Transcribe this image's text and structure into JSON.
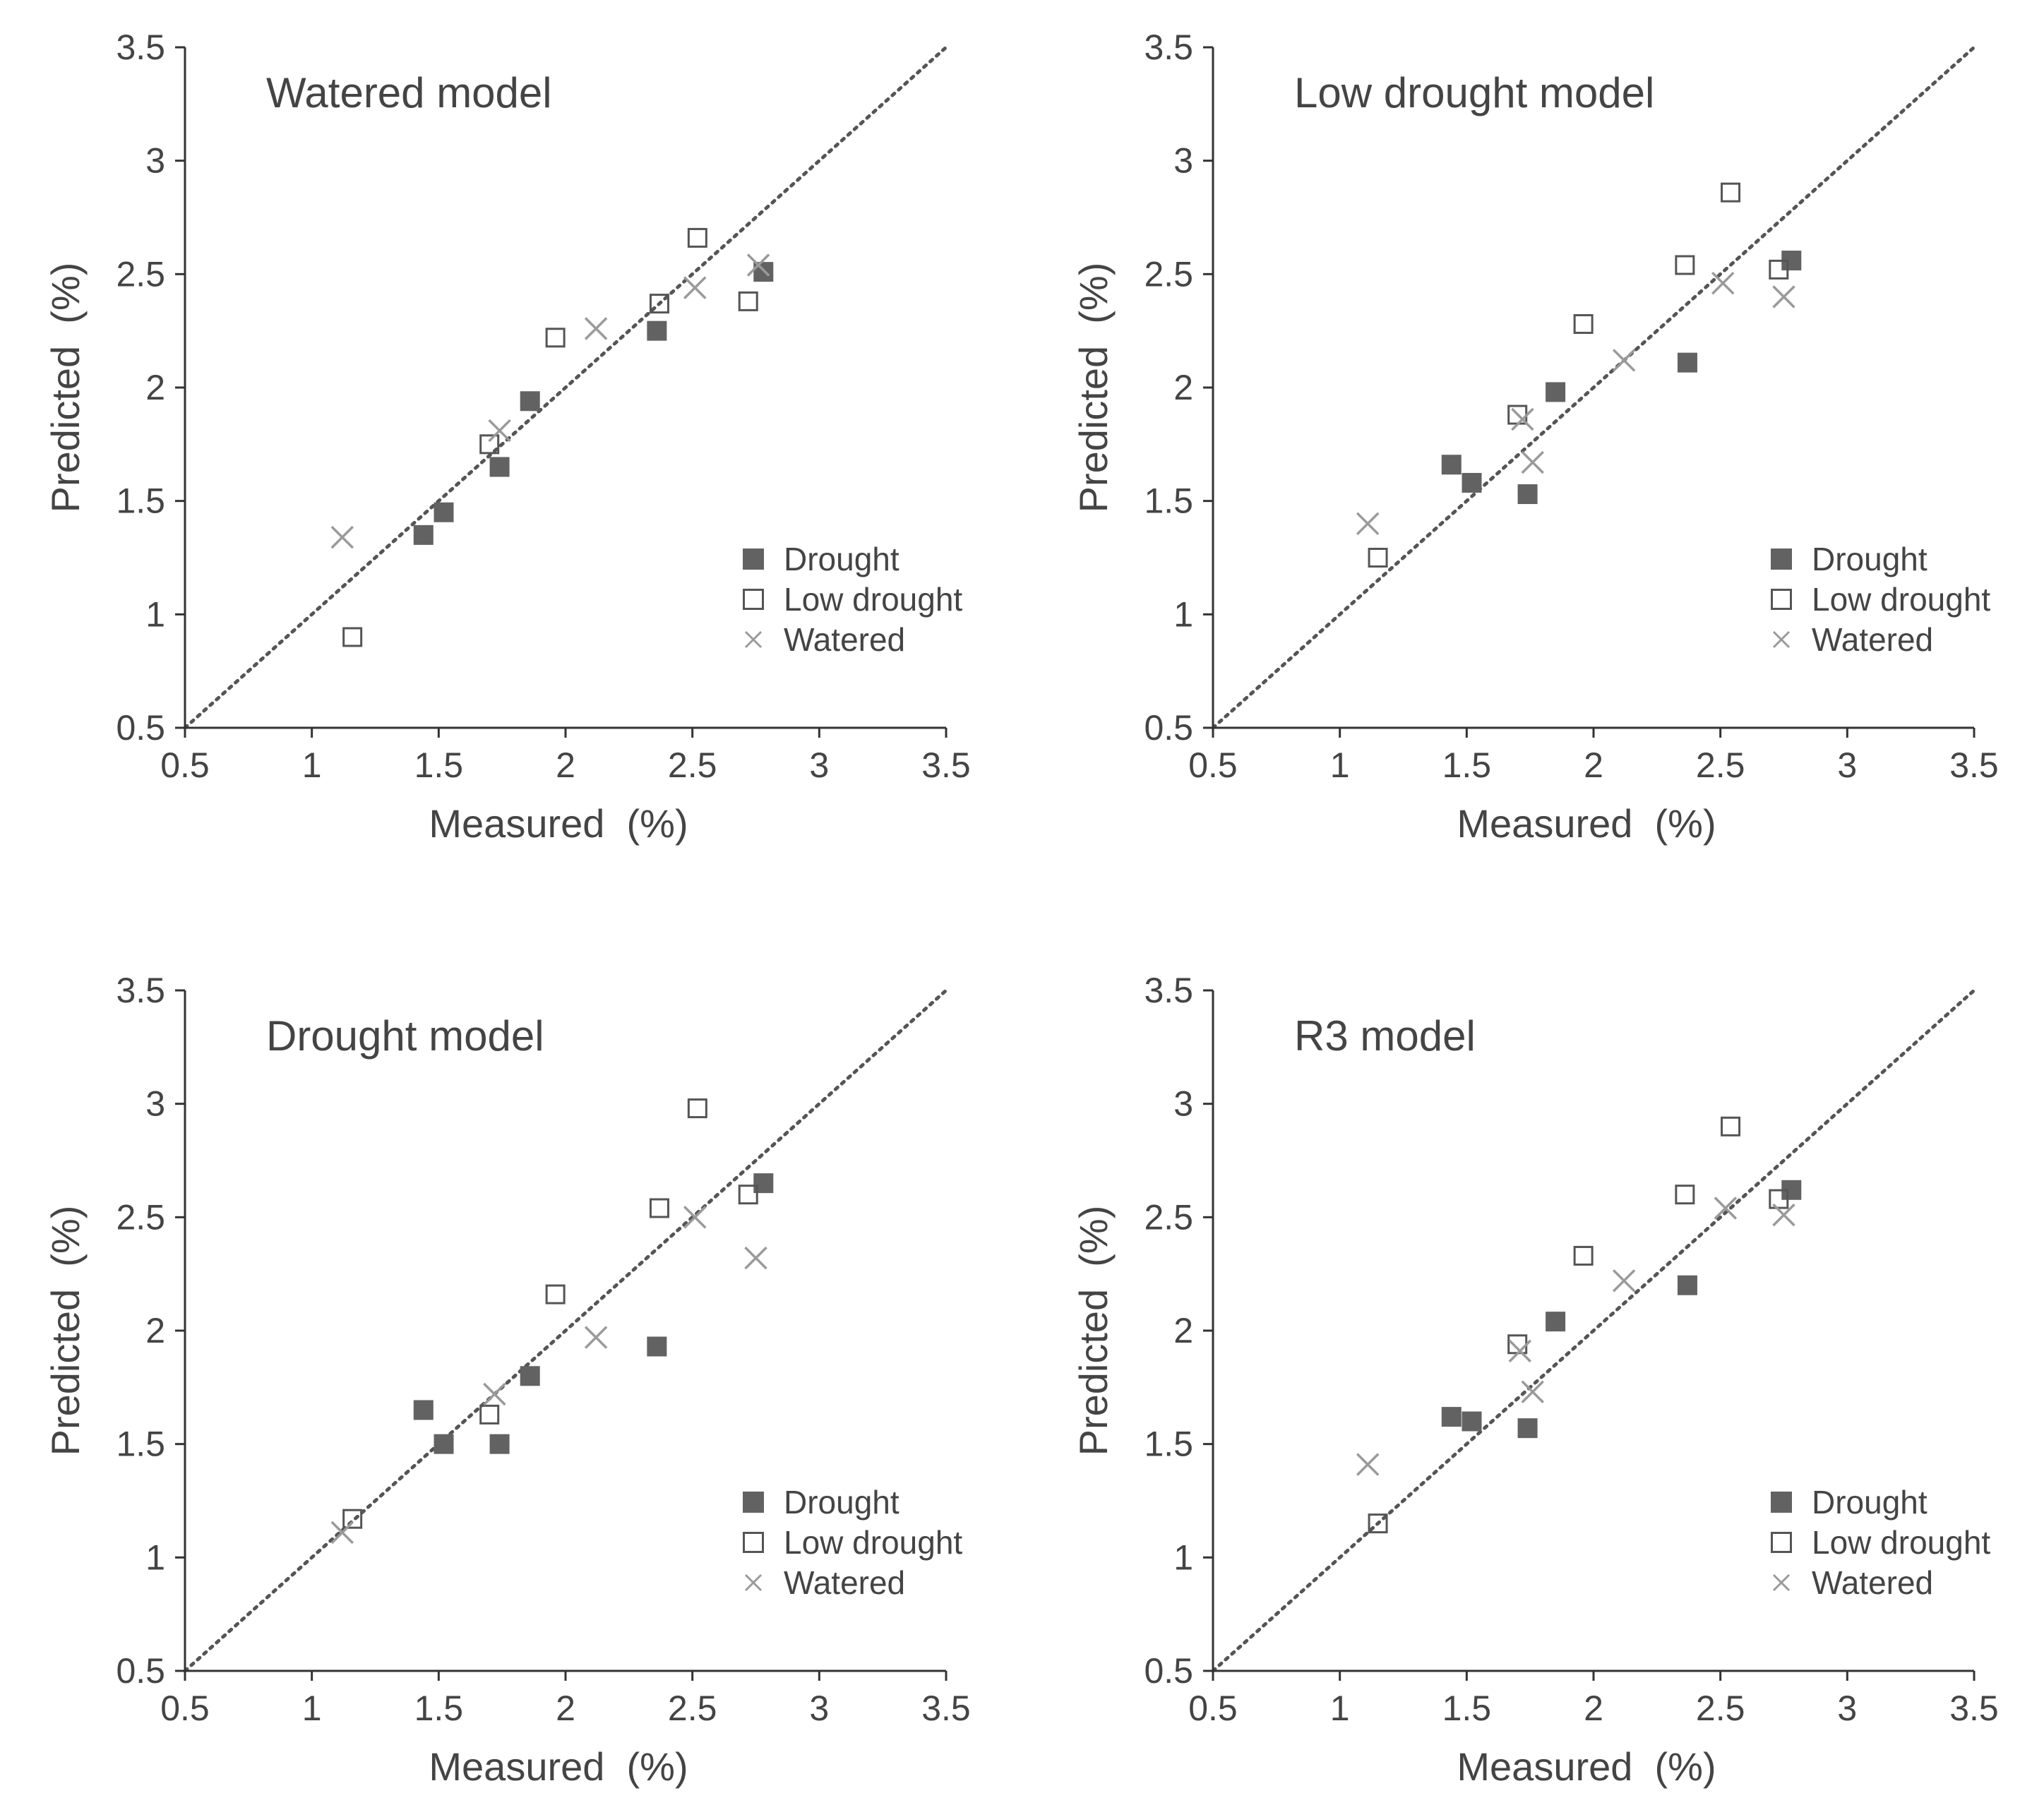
{
  "chart_data": [
    {
      "type": "scatter",
      "title": "Watered model",
      "xlabel": "Measured  (%)",
      "ylabel": "Predicted  (%)",
      "xlim": [
        0.5,
        3.5
      ],
      "ylim": [
        0.5,
        3.5
      ],
      "xticks": [
        "0.5",
        "1",
        "1.5",
        "2",
        "2.5",
        "3",
        "3.5"
      ],
      "yticks": [
        "0.5",
        "1",
        "1.5",
        "2",
        "2.5",
        "3",
        "3.5"
      ],
      "reference_line": "1:1 dotted",
      "legend_position": "bottom-right",
      "series": [
        {
          "name": "Drought",
          "marker": "filled-square",
          "x": [
            1.44,
            1.52,
            1.74,
            1.86,
            2.36,
            2.78
          ],
          "y": [
            1.35,
            1.45,
            1.65,
            1.94,
            2.25,
            2.51
          ]
        },
        {
          "name": "Low drought",
          "marker": "open-square",
          "x": [
            1.16,
            1.7,
            1.96,
            2.37,
            2.52,
            2.72
          ],
          "y": [
            0.9,
            1.75,
            2.22,
            2.37,
            2.66,
            2.38
          ]
        },
        {
          "name": "Watered",
          "marker": "x",
          "x": [
            1.12,
            1.74,
            2.12,
            2.51,
            2.76
          ],
          "y": [
            1.34,
            1.81,
            2.26,
            2.44,
            2.54
          ]
        }
      ]
    },
    {
      "type": "scatter",
      "title": "Low drought model",
      "xlabel": "Measured  (%)",
      "ylabel": "Predicted  (%)",
      "xlim": [
        0.5,
        3.5
      ],
      "ylim": [
        0.5,
        3.5
      ],
      "xticks": [
        "0.5",
        "1",
        "1.5",
        "2",
        "2.5",
        "3",
        "3.5"
      ],
      "yticks": [
        "0.5",
        "1",
        "1.5",
        "2",
        "2.5",
        "3",
        "3.5"
      ],
      "reference_line": "1:1 dotted",
      "legend_position": "bottom-right",
      "series": [
        {
          "name": "Drought",
          "marker": "filled-square",
          "x": [
            1.44,
            1.52,
            1.74,
            1.85,
            2.37,
            2.78
          ],
          "y": [
            1.66,
            1.58,
            1.53,
            1.98,
            2.11,
            2.56
          ]
        },
        {
          "name": "Low drought",
          "marker": "open-square",
          "x": [
            1.15,
            1.7,
            1.96,
            2.36,
            2.54,
            2.73
          ],
          "y": [
            1.25,
            1.88,
            2.28,
            2.54,
            2.86,
            2.52
          ]
        },
        {
          "name": "Watered",
          "marker": "x",
          "x": [
            1.11,
            1.72,
            1.76,
            2.12,
            2.51,
            2.75
          ],
          "y": [
            1.4,
            1.86,
            1.67,
            2.12,
            2.46,
            2.4
          ]
        }
      ]
    },
    {
      "type": "scatter",
      "title": "Drought model",
      "xlabel": "Measured  (%)",
      "ylabel": "Predicted  (%)",
      "xlim": [
        0.5,
        3.5
      ],
      "ylim": [
        0.5,
        3.5
      ],
      "xticks": [
        "0.5",
        "1",
        "1.5",
        "2",
        "2.5",
        "3",
        "3.5"
      ],
      "yticks": [
        "0.5",
        "1",
        "1.5",
        "2",
        "2.5",
        "3",
        "3.5"
      ],
      "reference_line": "1:1 dotted",
      "legend_position": "bottom-right",
      "series": [
        {
          "name": "Drought",
          "marker": "filled-square",
          "x": [
            1.44,
            1.52,
            1.74,
            1.86,
            2.36,
            2.78
          ],
          "y": [
            1.65,
            1.5,
            1.5,
            1.8,
            1.93,
            2.65
          ]
        },
        {
          "name": "Low drought",
          "marker": "open-square",
          "x": [
            1.16,
            1.7,
            1.96,
            2.37,
            2.52,
            2.72
          ],
          "y": [
            1.17,
            1.63,
            2.16,
            2.54,
            2.98,
            2.6
          ]
        },
        {
          "name": "Watered",
          "marker": "x",
          "x": [
            1.12,
            1.72,
            2.12,
            2.51,
            2.75
          ],
          "y": [
            1.11,
            1.72,
            1.97,
            2.5,
            2.32
          ]
        }
      ]
    },
    {
      "type": "scatter",
      "title": "R3 model",
      "xlabel": "Measured  (%)",
      "ylabel": "Predicted  (%)",
      "xlim": [
        0.5,
        3.5
      ],
      "ylim": [
        0.5,
        3.5
      ],
      "xticks": [
        "0.5",
        "1",
        "1.5",
        "2",
        "2.5",
        "3",
        "3.5"
      ],
      "yticks": [
        "0.5",
        "1",
        "1.5",
        "2",
        "2.5",
        "3",
        "3.5"
      ],
      "reference_line": "1:1 dotted",
      "legend_position": "bottom-right",
      "series": [
        {
          "name": "Drought",
          "marker": "filled-square",
          "x": [
            1.44,
            1.52,
            1.74,
            1.85,
            2.37,
            2.78
          ],
          "y": [
            1.62,
            1.6,
            1.57,
            2.04,
            2.2,
            2.62
          ]
        },
        {
          "name": "Low drought",
          "marker": "open-square",
          "x": [
            1.15,
            1.7,
            1.96,
            2.36,
            2.54,
            2.73
          ],
          "y": [
            1.15,
            1.94,
            2.33,
            2.6,
            2.9,
            2.58
          ]
        },
        {
          "name": "Watered",
          "marker": "x",
          "x": [
            1.11,
            1.71,
            1.76,
            2.12,
            2.52,
            2.75
          ],
          "y": [
            1.41,
            1.91,
            1.73,
            2.22,
            2.54,
            2.51
          ]
        }
      ]
    }
  ],
  "colors": {
    "drought_fill": "#626262",
    "low_drought_stroke": "#555555",
    "watered_stroke": "#9a9a9a",
    "axis": "#333333",
    "text": "#444444",
    "reference_line": "#555555"
  }
}
